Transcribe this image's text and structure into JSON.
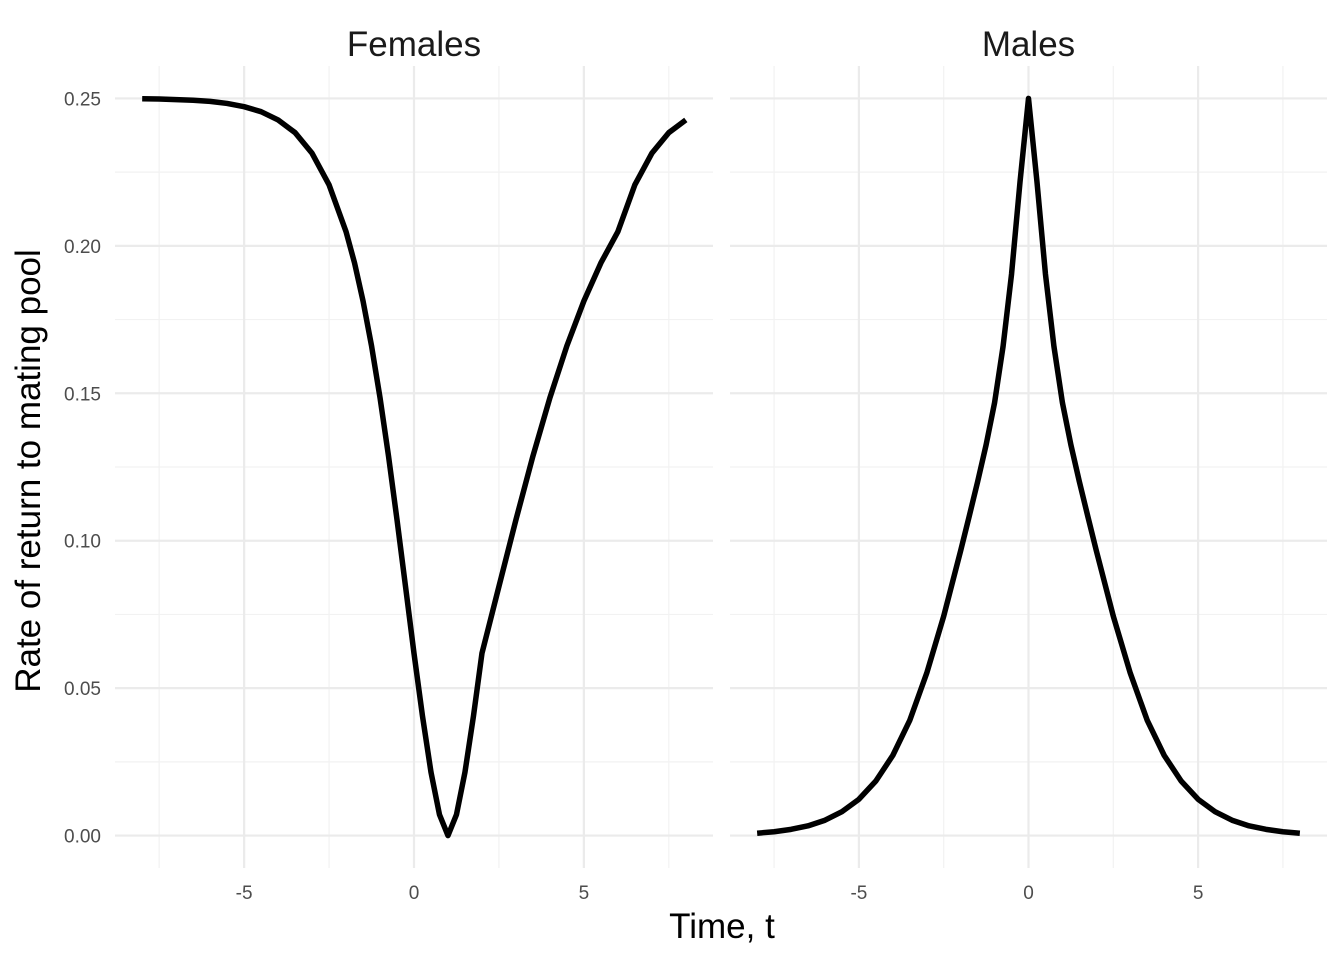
{
  "chart_data": {
    "type": "line",
    "xlabel": "Time, t",
    "ylabel": "Rate of return to mating pool",
    "ylim": [
      -0.011,
      0.261
    ],
    "y_ticks": [
      0.0,
      0.05,
      0.1,
      0.15,
      0.2,
      0.25
    ],
    "y_tick_labels": [
      "0.00",
      "0.05",
      "0.10",
      "0.15",
      "0.20",
      "0.25"
    ],
    "x_ticks": [
      -5,
      0,
      5
    ],
    "x_tick_labels": [
      "-5",
      "0",
      "5"
    ],
    "grid": true,
    "legend": "none",
    "line_color": "#000000",
    "panels": [
      {
        "title": "Females",
        "xlim": [
          -8.8,
          8.8
        ],
        "x": [
          -8,
          -7.5,
          -7,
          -6.5,
          -6,
          -5.5,
          -5,
          -4.5,
          -4,
          -3.5,
          -3,
          -2.5,
          -2,
          -1.75,
          -1.5,
          -1.25,
          -1,
          -0.75,
          -0.5,
          -0.25,
          0,
          0.25,
          0.5,
          0.75,
          1,
          1.25,
          1.5,
          1.75,
          2,
          2.5,
          3,
          3.5,
          4,
          4.5,
          5,
          5.5,
          6,
          6.5,
          7,
          7.5,
          8
        ],
        "y": [
          0.2499,
          0.2498,
          0.2496,
          0.2494,
          0.249,
          0.2483,
          0.2472,
          0.2455,
          0.2427,
          0.2384,
          0.2314,
          0.2207,
          0.2048,
          0.1942,
          0.1813,
          0.1661,
          0.1485,
          0.1287,
          0.1071,
          0.0845,
          0.0618,
          0.0405,
          0.0215,
          0.0071,
          0.0,
          0.0071,
          0.0215,
          0.0405,
          0.0618,
          0.0845,
          0.1071,
          0.1287,
          0.1485,
          0.1661,
          0.1813,
          0.1942,
          0.2048,
          0.2207,
          0.2314,
          0.2384,
          0.2427
        ],
        "y_note": ""
      },
      {
        "title": "Males",
        "xlim": [
          -8.8,
          8.8
        ],
        "x": [
          -8,
          -7.5,
          -7,
          -6.5,
          -6,
          -5.5,
          -5,
          -4.5,
          -4,
          -3.5,
          -3,
          -2.5,
          -2,
          -1.75,
          -1.5,
          -1.25,
          -1,
          -0.75,
          -0.5,
          -0.25,
          0,
          0.25,
          0.5,
          0.75,
          1,
          1.25,
          1.5,
          1.75,
          2,
          2.5,
          3,
          3.5,
          4,
          4.5,
          5,
          5.5,
          6,
          6.5,
          7,
          7.5,
          8
        ],
        "y": [
          0.0008,
          0.0013,
          0.0021,
          0.0033,
          0.0052,
          0.0081,
          0.0123,
          0.0185,
          0.0272,
          0.0391,
          0.0551,
          0.0744,
          0.0966,
          0.1082,
          0.12,
          0.1325,
          0.1468,
          0.1659,
          0.1904,
          0.2217,
          0.25,
          0.2217,
          0.1904,
          0.1659,
          0.1468,
          0.1325,
          0.12,
          0.1082,
          0.0966,
          0.0744,
          0.0551,
          0.0391,
          0.0272,
          0.0185,
          0.0123,
          0.0081,
          0.0052,
          0.0033,
          0.0021,
          0.0013,
          0.0008
        ]
      }
    ]
  }
}
